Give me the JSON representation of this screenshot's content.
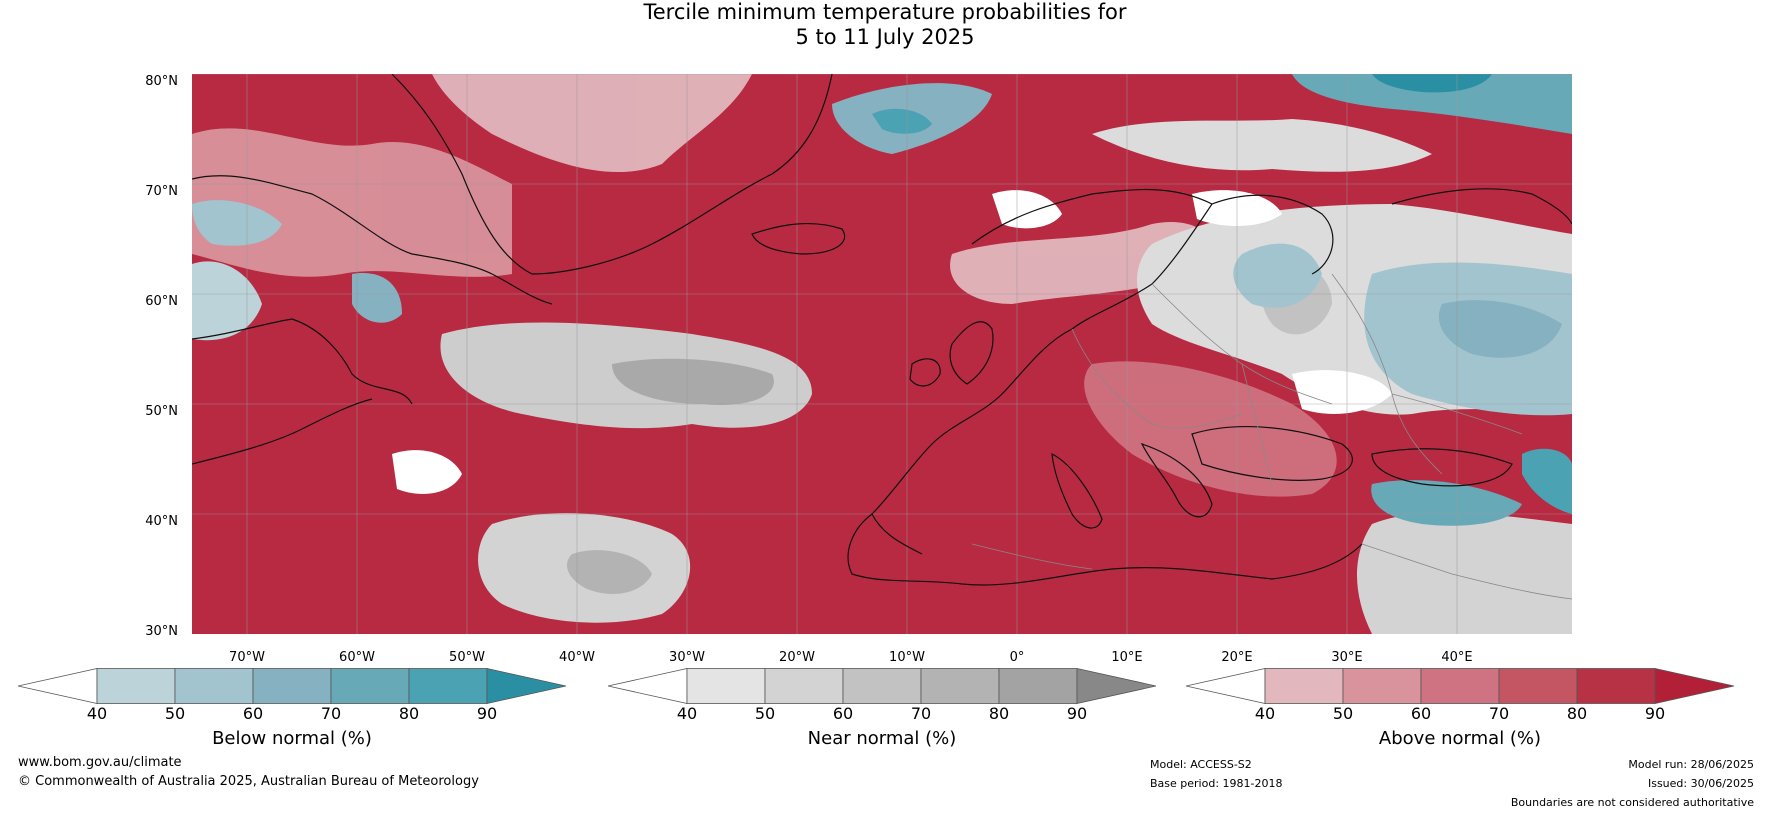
{
  "title_line1": "Tercile minimum temperature probabilities for",
  "title_line2": "5 to 11 July 2025",
  "lat_labels": [
    "80°N",
    "70°N",
    "60°N",
    "50°N",
    "40°N",
    "30°N"
  ],
  "lon_labels": [
    "70°W",
    "60°W",
    "50°W",
    "40°W",
    "30°W",
    "20°W",
    "10°W",
    "0°",
    "10°E",
    "20°E",
    "30°E",
    "40°E"
  ],
  "map": {
    "region": "North Atlantic, Greenland, Europe",
    "lat_range": [
      30,
      81
    ],
    "colors": {
      "ocean_base": "#b5253e",
      "land_border": "#111111",
      "country_border": "#888888",
      "grid": "#999999"
    }
  },
  "colorbars": [
    {
      "title": "Below normal (%)",
      "ticks": [
        "40",
        "50",
        "60",
        "70",
        "80",
        "90"
      ],
      "colors": [
        "#ffffff",
        "#bcd3da",
        "#a2c4cf",
        "#85b1c0",
        "#68a9b8",
        "#4aa2b3",
        "#2b8fa3"
      ]
    },
    {
      "title": "Near normal (%)",
      "ticks": [
        "40",
        "50",
        "60",
        "70",
        "80",
        "90"
      ],
      "colors": [
        "#ffffff",
        "#e4e4e4",
        "#d3d3d3",
        "#c2c2c2",
        "#b3b3b3",
        "#a3a3a3",
        "#888888"
      ]
    },
    {
      "title": "Above normal (%)",
      "ticks": [
        "40",
        "50",
        "60",
        "70",
        "80",
        "90"
      ],
      "colors": [
        "#ffffff",
        "#e2b7be",
        "#d8939c",
        "#cf7281",
        "#c45563",
        "#b83246",
        "#b22038"
      ]
    }
  ],
  "footer": {
    "website": "www.bom.gov.au/climate",
    "copyright": "© Commonwealth of Australia 2025, Australian Bureau of Meteorology",
    "model": "Model: ACCESS-S2",
    "base_period": "Base period: 1981-2018",
    "model_run": "Model run: 28/06/2025",
    "issued": "Issued: 30/06/2025",
    "disclaimer": "Boundaries are not considered authoritative"
  }
}
